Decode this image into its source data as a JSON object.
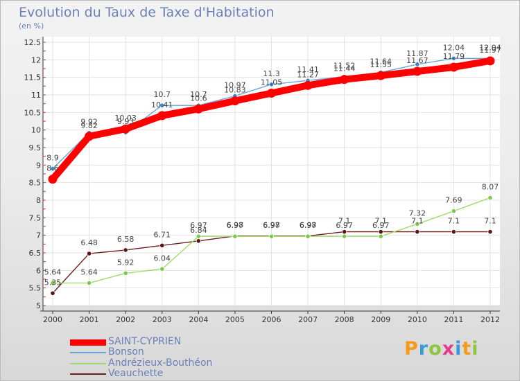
{
  "header": {
    "title": "Evolution du Taux de Taxe d'Habitation",
    "unit": "(en %)"
  },
  "logo": {
    "text": "Proxiti",
    "colors": [
      "#f59b1b",
      "#3a9ad9",
      "#8cc63f",
      "#e23d8c",
      "#3a9ad9",
      "#f59b1b",
      "#8cc63f"
    ]
  },
  "chart_data": {
    "type": "line",
    "title": "Evolution du Taux de Taxe d'Habitation",
    "ylabel": "(en %)",
    "x": [
      "2000",
      "2001",
      "2002",
      "2003",
      "2004",
      "2005",
      "2006",
      "2007",
      "2008",
      "2009",
      "2010",
      "2011",
      "2012"
    ],
    "ylim": [
      5,
      12.5
    ],
    "yticks": [
      "5",
      "5.5",
      "6",
      "6.5",
      "7",
      "7.5",
      "8",
      "8.5",
      "9",
      "9.5",
      "10",
      "10.5",
      "11",
      "11.5",
      "12",
      "12.5"
    ],
    "grid": true,
    "legend_position": "bottom-left",
    "series": [
      {
        "name": "SAINT-CYPRIEN",
        "color": "#ff0000",
        "values": [
          8.6,
          9.82,
          10.03,
          10.41,
          10.6,
          10.83,
          11.05,
          11.27,
          11.44,
          11.55,
          11.67,
          11.79,
          11.97
        ],
        "labels": [
          "8.6",
          "9.82",
          "10.03",
          "10.41",
          "10.6",
          "10.83",
          "11.05",
          "11.27",
          "11.44",
          "11.55",
          "11.67",
          "11.79",
          "11.97"
        ]
      },
      {
        "name": "Bonson",
        "color": "#6aa3d8",
        "values": [
          8.9,
          9.92,
          9.93,
          10.7,
          10.7,
          10.97,
          11.3,
          11.41,
          11.52,
          11.64,
          11.87,
          12.04,
          12.04
        ],
        "labels": [
          "8.9",
          "9.92",
          "9.93",
          "10.7",
          "10.7",
          "10.97",
          "11.3",
          "11.41",
          "11.52",
          "11.64",
          "11.87",
          "12.04",
          "12.04"
        ]
      },
      {
        "name": "Andrézieux-Bouthéon",
        "color": "#9fdc6a",
        "values": [
          5.64,
          5.64,
          5.92,
          6.04,
          6.97,
          6.97,
          6.97,
          6.97,
          6.97,
          6.97,
          7.32,
          7.69,
          8.07
        ],
        "labels": [
          "5.64",
          "5.64",
          "5.92",
          "6.04",
          "6.97",
          "6.97",
          "6.97",
          "6.97",
          "6.97",
          "6.97",
          "7.32",
          "7.69",
          "8.07"
        ]
      },
      {
        "name": "Veauchette",
        "color": "#6b1e1e",
        "values": [
          5.35,
          6.48,
          6.58,
          6.71,
          6.84,
          6.98,
          6.98,
          6.98,
          7.1,
          7.1,
          7.1,
          7.1,
          7.1
        ],
        "labels": [
          "5.35",
          "6.48",
          "6.58",
          "6.71",
          "6.84",
          "6.98",
          "6.98",
          "6.98",
          "7.1",
          "7.1",
          "7.1",
          "7.1",
          "7.1"
        ]
      }
    ]
  }
}
